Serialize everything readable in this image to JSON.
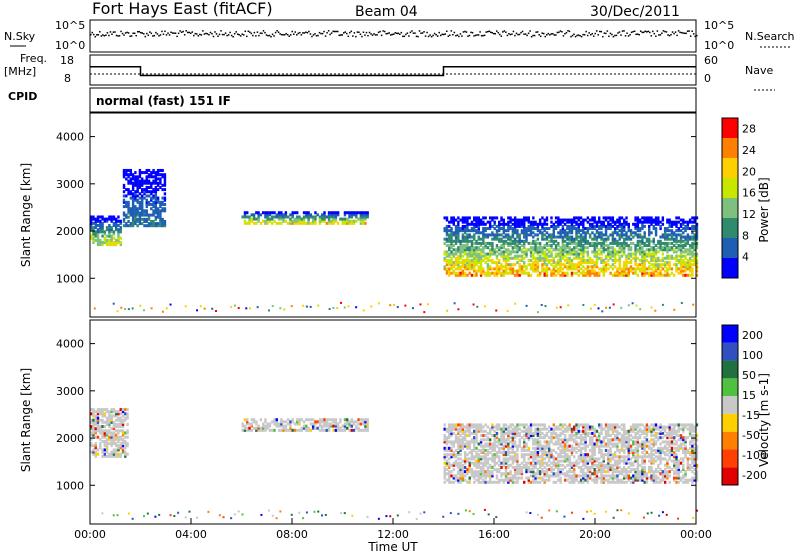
{
  "header": {
    "title": "Fort Hays East (fitACF)",
    "beam": "Beam 04",
    "date": "30/Dec/2011"
  },
  "status_panel": {
    "left_label_top": "N.Sky",
    "left_label_freq": "Freq.",
    "left_label_freq_unit": "[MHz]",
    "left_label_cpid": "CPID",
    "right_label_search": "N.Search",
    "right_label_nave": "Nave",
    "noise_ticks_left": [
      "10^5",
      "10^0"
    ],
    "noise_ticks_right": [
      "10^5",
      "10^0"
    ],
    "freq_ticks": [
      "18",
      "8"
    ],
    "nave_ticks": [
      "60",
      "0"
    ],
    "cpid_text": "normal (fast) 151 IF",
    "freq_segments": [
      {
        "start_hour": 0,
        "end_hour": 2,
        "freq_mhz": 14.5
      },
      {
        "start_hour": 2,
        "end_hour": 14,
        "freq_mhz": 10.5
      },
      {
        "start_hour": 14,
        "end_hour": 24,
        "freq_mhz": 14.5
      }
    ],
    "nave_level": 18
  },
  "colors": {
    "power_scale": [
      "#0000ff",
      "#1e5fb4",
      "#2f8a6e",
      "#7fc07f",
      "#c8e600",
      "#ffd000",
      "#ff8000",
      "#ff0000"
    ],
    "velocity_scale": [
      "#0000ff",
      "#3050c0",
      "#207040",
      "#50c040",
      "#c8c8c8",
      "#ffd000",
      "#ff8000",
      "#ff4000",
      "#e00000"
    ]
  },
  "chart_data": [
    {
      "type": "heatmap",
      "panel": "power",
      "ylabel": "Slant Range [km]",
      "xlabel": "Time UT",
      "x_ticks": [
        "00:00",
        "04:00",
        "08:00",
        "12:00",
        "16:00",
        "20:00",
        "00:00"
      ],
      "xlim_hours": [
        0,
        24
      ],
      "y_ticks": [
        1000,
        2000,
        3000,
        4000
      ],
      "ylim": [
        180,
        4500
      ],
      "colorbar_label": "Power [dB]",
      "colorbar_ticks": [
        4,
        8,
        12,
        16,
        20,
        24,
        28
      ],
      "colorbar_range": [
        0,
        30
      ],
      "regions": [
        {
          "name": "early",
          "t0": 0.0,
          "t1": 1.2,
          "r0": 1700,
          "r1": 2300,
          "value_peak": 22
        },
        {
          "name": "early-high",
          "t0": 1.3,
          "t1": 3.0,
          "r0": 2100,
          "r1": 3300,
          "value_peak": 10
        },
        {
          "name": "mid",
          "t0": 6.0,
          "t1": 11.0,
          "r0": 2150,
          "r1": 2400,
          "value_peak": 24
        },
        {
          "name": "late",
          "t0": 14.0,
          "t1": 24.0,
          "r0": 1050,
          "r1": 2300,
          "value_peak": 28
        }
      ]
    },
    {
      "type": "heatmap",
      "panel": "velocity",
      "ylabel": "Slant Range [km]",
      "xlabel": "Time UT",
      "x_ticks": [
        "00:00",
        "04:00",
        "08:00",
        "12:00",
        "16:00",
        "20:00",
        "00:00"
      ],
      "xlim_hours": [
        0,
        24
      ],
      "y_ticks": [
        1000,
        2000,
        3000,
        4000
      ],
      "ylim": [
        180,
        4500
      ],
      "colorbar_label": "Velocity [m s-1]",
      "colorbar_ticks": [
        200,
        100,
        50,
        15,
        -15,
        -50,
        -100,
        -200
      ],
      "colorbar_range": [
        -250,
        250
      ],
      "regions": [
        {
          "name": "early",
          "t0": 0.0,
          "t1": 1.5,
          "r0": 1600,
          "r1": 2600,
          "value_peak": 0
        },
        {
          "name": "mid",
          "t0": 6.0,
          "t1": 11.0,
          "r0": 2150,
          "r1": 2400,
          "value_peak": 30
        },
        {
          "name": "late",
          "t0": 14.0,
          "t1": 24.0,
          "r0": 1050,
          "r1": 2300,
          "value_peak": 0
        }
      ]
    }
  ]
}
